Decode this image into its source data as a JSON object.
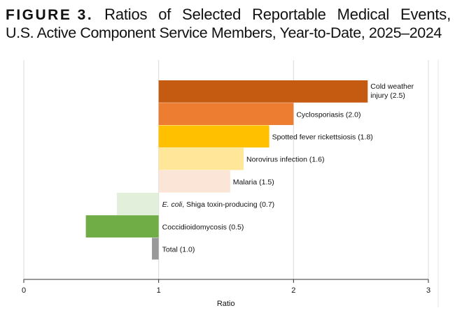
{
  "figure": {
    "label": "FIGURE 3.",
    "title_line1_words": [
      "Ratios",
      "of",
      "Selected",
      "Reportable",
      "Medical",
      "Events,"
    ],
    "title_line2": "U.S. Active Component Service Members, Year-to-Date, 2025–2024"
  },
  "chart_data": {
    "type": "bar",
    "orientation": "horizontal",
    "baseline": 1,
    "xlabel": "Ratio",
    "ylabel": "",
    "xlim": [
      0,
      3
    ],
    "xticks": [
      "0",
      "1",
      "2",
      "3"
    ],
    "grid": "vertical",
    "legend": "none",
    "categories": [
      {
        "italic": "",
        "rest": "Cold weather",
        "rest2": "injury (2.5)",
        "value": 2.55,
        "color": "#C55A11"
      },
      {
        "italic": "",
        "rest": "Cyclosporiasis (2.0)",
        "rest2": "",
        "value": 2.0,
        "color": "#ED7D31"
      },
      {
        "italic": "",
        "rest": "Spotted fever rickettsiosis (1.8)",
        "rest2": "",
        "value": 1.82,
        "color": "#FFC000"
      },
      {
        "italic": "",
        "rest": "Norovirus infection (1.6)",
        "rest2": "",
        "value": 1.63,
        "color": "#FFE699"
      },
      {
        "italic": "",
        "rest": "Malaria (1.5)",
        "rest2": "",
        "value": 1.53,
        "color": "#FBE5D6"
      },
      {
        "italic": "E. coli",
        "rest": ", Shiga toxin-producing (0.7)",
        "rest2": "",
        "value": 0.69,
        "color": "#E2EFDA"
      },
      {
        "italic": "",
        "rest": "Coccidioidomycosis (0.5)",
        "rest2": "",
        "value": 0.46,
        "color": "#70AD47"
      },
      {
        "italic": "",
        "rest": "Total (1.0)",
        "rest2": "",
        "value": 0.95,
        "color": "#999999"
      }
    ]
  }
}
